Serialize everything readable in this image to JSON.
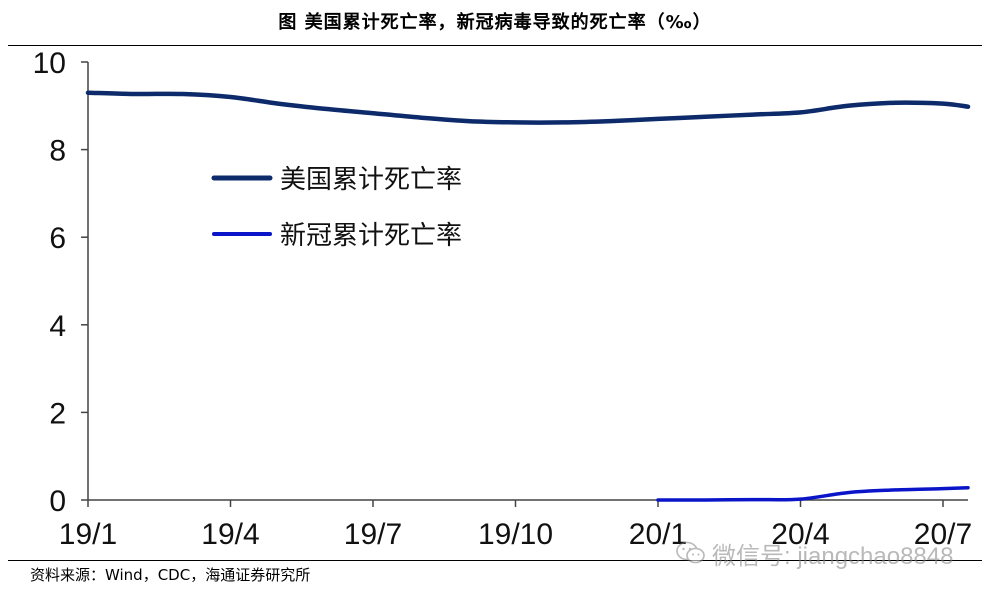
{
  "title": "图 美国累计死亡率，新冠病毒导致的死亡率（‰）",
  "source": "资料来源：Wind，CDC，海通证券研究所",
  "watermark": {
    "icon": "wechat-icon",
    "text": "微信号: jiangchao8848"
  },
  "colors": {
    "us_series": "#0d2a6b",
    "covid_series": "#0a14c8",
    "axis": "#444444",
    "rule": "#000000"
  },
  "chart_data": {
    "type": "line",
    "title": "美国累计死亡率，新冠病毒导致的死亡率（‰）",
    "xlabel": "",
    "ylabel": "",
    "x_ticks": [
      "19/1",
      "19/4",
      "19/7",
      "19/10",
      "20/1",
      "20/4",
      "20/7"
    ],
    "y_ticks": [
      0,
      2,
      4,
      6,
      8,
      10
    ],
    "ylim": [
      0,
      10
    ],
    "grid": false,
    "legend_position": "upper-left-inside",
    "series": [
      {
        "name": "美国累计死亡率",
        "points": [
          [
            "19/1",
            9.3
          ],
          [
            "19/2",
            9.27
          ],
          [
            "19/3",
            9.27
          ],
          [
            "19/4",
            9.2
          ],
          [
            "19/5",
            9.05
          ],
          [
            "19/6",
            8.93
          ],
          [
            "19/7",
            8.83
          ],
          [
            "19/8",
            8.73
          ],
          [
            "19/9",
            8.65
          ],
          [
            "19/10",
            8.62
          ],
          [
            "19/11",
            8.62
          ],
          [
            "19/12",
            8.65
          ],
          [
            "20/1",
            8.7
          ],
          [
            "20/2",
            8.75
          ],
          [
            "20/3",
            8.8
          ],
          [
            "20/4",
            8.85
          ],
          [
            "20/5",
            9.0
          ],
          [
            "20/6",
            9.07
          ],
          [
            "20/7",
            9.05
          ],
          [
            "20/8",
            8.98
          ]
        ]
      },
      {
        "name": "新冠累计死亡率",
        "points": [
          [
            "20/1",
            0.0
          ],
          [
            "20/2",
            0.0
          ],
          [
            "20/3",
            0.01
          ],
          [
            "20/4",
            0.02
          ],
          [
            "20/5",
            0.17
          ],
          [
            "20/6",
            0.23
          ],
          [
            "20/7",
            0.26
          ],
          [
            "20/8",
            0.28
          ]
        ]
      }
    ]
  }
}
